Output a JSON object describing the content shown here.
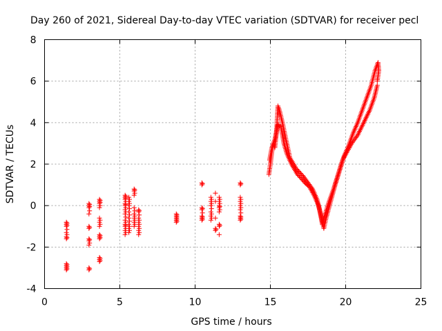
{
  "chart_data": {
    "type": "scatter",
    "title": "Day 260 of 2021, Sidereal Day-to-day VTEC variation (SDTVAR) for receiver pecl",
    "xlabel": "GPS time / hours",
    "ylabel": "SDTVAR / TECUs",
    "xlim": [
      0,
      25
    ],
    "ylim": [
      -4,
      8
    ],
    "x_ticks": [
      0,
      5,
      10,
      15,
      20,
      25
    ],
    "y_ticks": [
      -4,
      -2,
      0,
      2,
      4,
      6,
      8
    ],
    "x_tick_labels": [
      "0",
      "5",
      "10",
      "15",
      "20",
      "25"
    ],
    "y_tick_labels": [
      "-4",
      "-2",
      "0",
      "2",
      "4",
      "6",
      "8"
    ],
    "grid": true,
    "marker": "plus",
    "color": "#ff0000",
    "series": [
      {
        "name": "SDTVAR",
        "clusters": [
          {
            "x": 1.45,
            "y": [
              -0.8,
              -0.9,
              -1.0,
              -1.3,
              -1.5,
              -1.6,
              -2.8,
              -2.9,
              -3.0,
              -3.1
            ]
          },
          {
            "x": 2.95,
            "y": [
              0.1,
              0.0,
              -0.1,
              -0.4,
              -1.0,
              -1.1,
              -1.6,
              -1.7,
              -1.9,
              -3.0,
              -3.1
            ]
          },
          {
            "x": 3.65,
            "y": [
              0.3,
              0.2,
              0.1,
              -0.1,
              -0.6,
              -0.8,
              -1.0,
              -1.4,
              -1.5,
              -1.6,
              -2.5,
              -2.6,
              -2.7
            ]
          },
          {
            "x": 5.35,
            "y": [
              0.5,
              0.4,
              0.3,
              0.1,
              0.0,
              -0.2,
              -0.4,
              -0.7,
              -0.9,
              -1.0,
              -1.2,
              -1.4
            ]
          },
          {
            "x": 5.6,
            "y": [
              0.4,
              0.2,
              0.0,
              -0.3,
              -0.6,
              -0.9,
              -1.1,
              -1.3
            ]
          },
          {
            "x": 5.95,
            "y": [
              0.8,
              0.7,
              0.5,
              -0.1,
              -0.4,
              -0.6,
              -0.8,
              -1.0
            ]
          },
          {
            "x": 6.25,
            "y": [
              -0.2,
              -0.3,
              -0.6,
              -0.8,
              -1.0,
              -1.2,
              -1.4
            ]
          },
          {
            "x": 8.75,
            "y": [
              -0.4,
              -0.5,
              -0.6,
              -0.7,
              -0.8
            ]
          },
          {
            "x": 10.45,
            "y": [
              1.1,
              1.0,
              -0.1,
              -0.2,
              -0.5,
              -0.6,
              -0.7
            ]
          },
          {
            "x": 11.05,
            "y": [
              0.4,
              0.2,
              0.0,
              -0.3,
              -0.5,
              -0.7
            ]
          },
          {
            "x": 11.35,
            "y": [
              0.6,
              0.2,
              -0.6,
              -1.1,
              -1.2
            ]
          },
          {
            "x": 11.6,
            "y": [
              0.4,
              0.2,
              0.0,
              -0.1,
              -0.3,
              -0.9,
              -1.0,
              -1.4
            ]
          },
          {
            "x": 13.0,
            "y": [
              1.1,
              1.0,
              0.4,
              0.2,
              0.0,
              -0.2,
              -0.5,
              -0.6,
              -0.7
            ]
          }
        ],
        "curves": [
          {
            "points": [
              [
                14.9,
                1.5
              ],
              [
                15.0,
                2.0
              ],
              [
                15.1,
                2.6
              ],
              [
                15.2,
                3.0
              ],
              [
                15.3,
                2.8
              ],
              [
                15.4,
                3.5
              ],
              [
                15.5,
                4.8
              ],
              [
                15.6,
                4.6
              ],
              [
                15.8,
                4.0
              ],
              [
                16.0,
                3.3
              ],
              [
                16.3,
                2.3
              ],
              [
                16.7,
                1.8
              ],
              [
                17.2,
                1.4
              ],
              [
                17.8,
                0.8
              ],
              [
                18.1,
                0.3
              ],
              [
                18.3,
                -0.3
              ],
              [
                18.45,
                -0.9
              ],
              [
                18.6,
                -0.5
              ],
              [
                18.9,
                0.2
              ],
              [
                19.2,
                0.8
              ],
              [
                19.5,
                1.5
              ],
              [
                19.8,
                2.2
              ],
              [
                20.1,
                2.6
              ],
              [
                20.4,
                3.0
              ],
              [
                20.8,
                3.4
              ],
              [
                21.2,
                4.0
              ],
              [
                21.6,
                4.6
              ],
              [
                21.9,
                5.2
              ],
              [
                22.1,
                5.8
              ]
            ]
          },
          {
            "points": [
              [
                14.95,
                2.2
              ],
              [
                15.1,
                2.8
              ],
              [
                15.3,
                3.2
              ],
              [
                15.5,
                3.9
              ],
              [
                15.7,
                3.8
              ],
              [
                15.9,
                3.0
              ],
              [
                16.1,
                2.5
              ],
              [
                16.4,
                2.0
              ],
              [
                16.8,
                1.5
              ],
              [
                17.3,
                1.1
              ],
              [
                17.6,
                0.9
              ],
              [
                17.9,
                0.5
              ],
              [
                18.2,
                0.0
              ],
              [
                18.4,
                -0.6
              ],
              [
                18.55,
                -1.1
              ],
              [
                18.7,
                -0.6
              ],
              [
                19.0,
                0.2
              ],
              [
                19.3,
                1.0
              ],
              [
                19.6,
                1.7
              ],
              [
                19.9,
                2.4
              ],
              [
                20.2,
                2.9
              ],
              [
                20.5,
                3.5
              ],
              [
                20.8,
                4.0
              ],
              [
                21.1,
                4.6
              ],
              [
                21.4,
                5.2
              ],
              [
                21.7,
                5.8
              ],
              [
                21.95,
                6.5
              ],
              [
                22.15,
                6.9
              ],
              [
                22.2,
                6.5
              ],
              [
                22.1,
                6.0
              ]
            ]
          }
        ]
      }
    ]
  }
}
